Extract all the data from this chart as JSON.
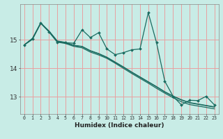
{
  "xlabel": "Humidex (Indice chaleur)",
  "bg_color": "#c8ece6",
  "grid_color": "#e8a0a0",
  "line_color": "#1a6b60",
  "x": [
    0,
    1,
    2,
    3,
    4,
    5,
    6,
    7,
    8,
    9,
    10,
    11,
    12,
    13,
    14,
    15,
    16,
    17,
    18,
    19,
    20,
    21,
    22,
    23
  ],
  "y_jagged": [
    14.82,
    15.02,
    15.6,
    15.28,
    14.92,
    14.9,
    14.88,
    15.35,
    15.08,
    15.25,
    14.68,
    14.48,
    14.55,
    14.65,
    14.68,
    15.95,
    14.9,
    13.55,
    13.02,
    12.72,
    12.88,
    12.87,
    13.02,
    12.72
  ],
  "y_smooth1": [
    14.82,
    15.02,
    15.58,
    15.28,
    14.92,
    14.87,
    14.77,
    14.72,
    14.57,
    14.47,
    14.35,
    14.18,
    14.0,
    13.82,
    13.65,
    13.48,
    13.3,
    13.13,
    12.97,
    12.83,
    12.73,
    12.68,
    12.63,
    12.58
  ],
  "y_smooth2": [
    14.82,
    15.05,
    15.58,
    15.3,
    14.95,
    14.9,
    14.8,
    14.76,
    14.61,
    14.51,
    14.38,
    14.21,
    14.04,
    13.86,
    13.69,
    13.52,
    13.35,
    13.17,
    13.02,
    12.89,
    12.79,
    12.74,
    12.69,
    12.64
  ],
  "y_smooth3": [
    14.82,
    15.05,
    15.59,
    15.31,
    14.96,
    14.91,
    14.81,
    14.77,
    14.62,
    14.52,
    14.39,
    14.22,
    14.05,
    13.87,
    13.7,
    13.53,
    13.36,
    13.18,
    13.03,
    12.9,
    12.8,
    12.75,
    12.7,
    12.65
  ],
  "ylim": [
    12.4,
    16.25
  ],
  "yticks": [
    13,
    14,
    15
  ],
  "xticks": [
    0,
    1,
    2,
    3,
    4,
    5,
    6,
    7,
    8,
    9,
    10,
    11,
    12,
    13,
    14,
    15,
    16,
    17,
    18,
    19,
    20,
    21,
    22,
    23
  ]
}
